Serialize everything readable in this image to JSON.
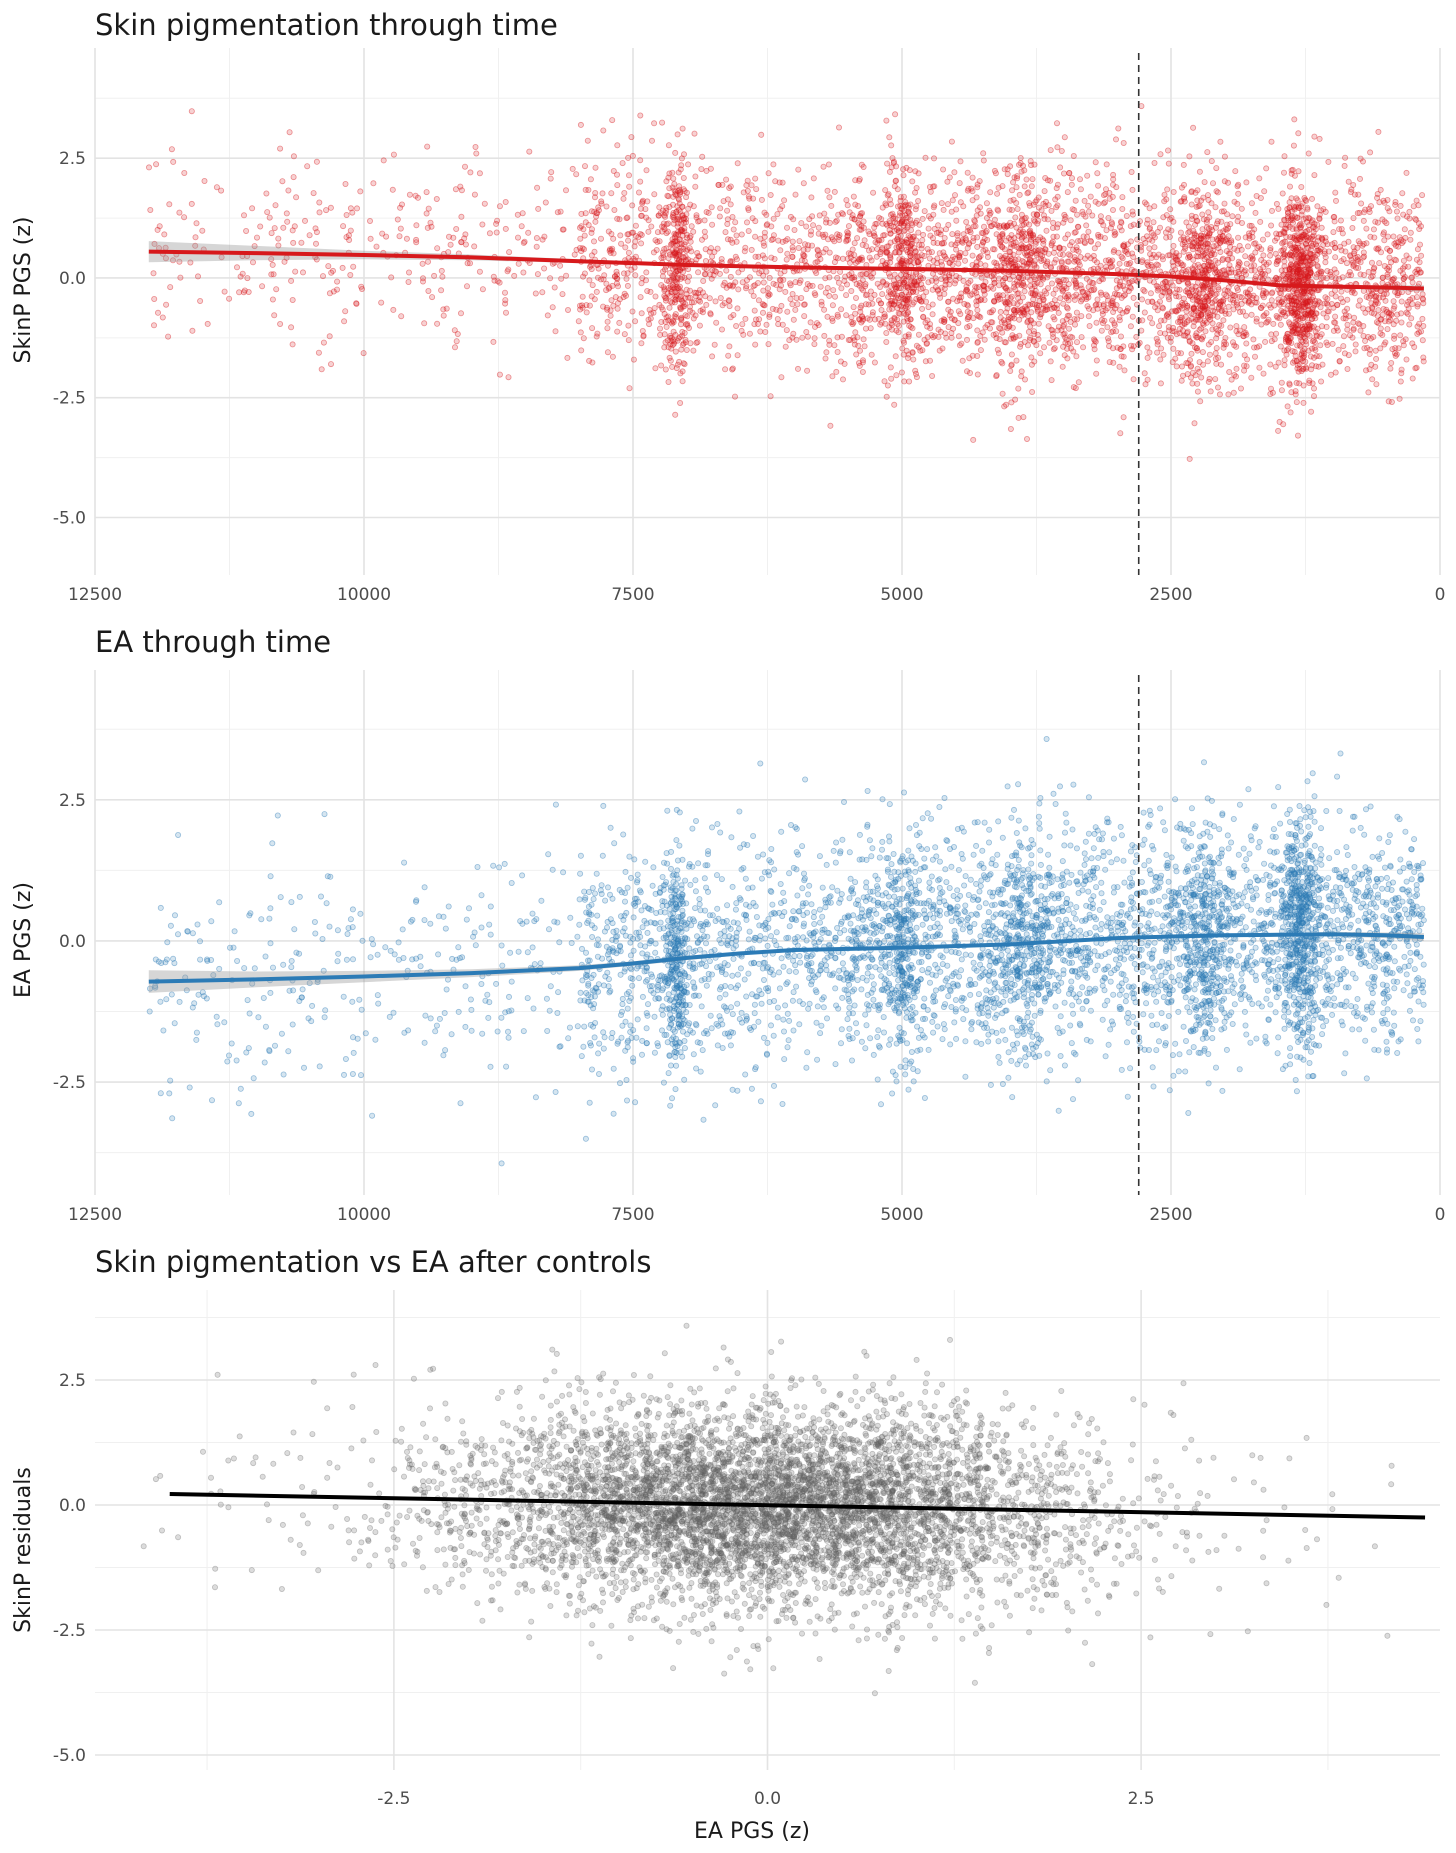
{
  "chart_data": [
    {
      "type": "scatter",
      "title": "Skin pigmentation through time",
      "xlabel": "",
      "ylabel": "SkinP PGS (z)",
      "x_reversed": true,
      "xlim": [
        12500,
        0
      ],
      "ylim": [
        -6.2,
        4.8
      ],
      "x_ticks": [
        12500,
        10000,
        7500,
        5000,
        2500,
        0
      ],
      "y_ticks": [
        2.5,
        0.0,
        -2.5,
        -5.0
      ],
      "x_tick_labels": [
        "12500",
        "10000",
        "7500",
        "5000",
        "2500",
        "0"
      ],
      "y_tick_labels": [
        "2.5",
        "0.0",
        "-2.5",
        "-5.0"
      ],
      "vline_x": 2800,
      "point_color": "#d7191c",
      "line_color": "#d7191c",
      "smooth": {
        "x": [
          12000,
          11000,
          10000,
          9000,
          8000,
          7000,
          6000,
          5000,
          4000,
          3000,
          2500,
          2000,
          1500,
          1000,
          500,
          150
        ],
        "y": [
          0.55,
          0.52,
          0.48,
          0.43,
          0.35,
          0.27,
          0.22,
          0.19,
          0.15,
          0.08,
          0.03,
          -0.05,
          -0.15,
          -0.18,
          -0.2,
          -0.22
        ]
      },
      "ci_halfwidth": [
        0.22,
        0.15,
        0.09,
        0.06,
        0.04,
        0.03,
        0.03,
        0.03,
        0.03,
        0.03,
        0.03,
        0.03,
        0.04,
        0.04,
        0.05,
        0.07
      ],
      "clusters": [
        {
          "center": 7100,
          "spread": 60,
          "share": 0.05
        },
        {
          "center": 1300,
          "spread": 90,
          "share": 0.09
        },
        {
          "center": 2200,
          "spread": 120,
          "share": 0.05
        },
        {
          "center": 5000,
          "spread": 100,
          "share": 0.04
        },
        {
          "center": 3900,
          "spread": 150,
          "share": 0.05
        }
      ]
    },
    {
      "type": "scatter",
      "title": "EA through time",
      "xlabel": "",
      "ylabel": "EA PGS (z)",
      "x_reversed": true,
      "xlim": [
        12500,
        0
      ],
      "ylim": [
        -4.5,
        4.8
      ],
      "x_ticks": [
        12500,
        10000,
        7500,
        5000,
        2500,
        0
      ],
      "y_ticks": [
        2.5,
        0.0,
        -2.5
      ],
      "x_tick_labels": [
        "12500",
        "10000",
        "7500",
        "5000",
        "2500",
        "0"
      ],
      "y_tick_labels": [
        "2.5",
        "0.0",
        "-2.5"
      ],
      "vline_x": 2800,
      "point_color": "#2c7bb6",
      "line_color": "#2c7bb6",
      "smooth": {
        "x": [
          12000,
          11000,
          10000,
          9000,
          8000,
          7500,
          7000,
          6500,
          6000,
          5000,
          4000,
          3000,
          2500,
          2000,
          1500,
          1000,
          500,
          150
        ],
        "y": [
          -0.72,
          -0.68,
          -0.63,
          -0.57,
          -0.48,
          -0.4,
          -0.3,
          -0.22,
          -0.16,
          -0.12,
          -0.06,
          0.05,
          0.08,
          0.1,
          0.11,
          0.12,
          0.1,
          0.07
        ]
      },
      "ci_halfwidth": [
        0.2,
        0.14,
        0.1,
        0.07,
        0.05,
        0.04,
        0.04,
        0.03,
        0.03,
        0.03,
        0.03,
        0.03,
        0.03,
        0.03,
        0.03,
        0.04,
        0.05,
        0.07
      ],
      "clusters": [
        {
          "center": 7100,
          "spread": 60,
          "share": 0.05
        },
        {
          "center": 1300,
          "spread": 90,
          "share": 0.09
        },
        {
          "center": 2200,
          "spread": 120,
          "share": 0.05
        },
        {
          "center": 5000,
          "spread": 100,
          "share": 0.04
        },
        {
          "center": 3900,
          "spread": 150,
          "share": 0.05
        }
      ]
    },
    {
      "type": "scatter",
      "title": "Skin pigmentation vs EA after controls",
      "xlabel": "EA PGS (z)",
      "ylabel": "SkinP residuals",
      "x_reversed": false,
      "xlim": [
        -4.5,
        4.5
      ],
      "ylim": [
        -5.3,
        4.3
      ],
      "x_ticks": [
        -2.5,
        0.0,
        2.5
      ],
      "y_ticks": [
        2.5,
        0.0,
        -2.5,
        -5.0
      ],
      "x_tick_labels": [
        "-2.5",
        "0.0",
        "2.5"
      ],
      "y_tick_labels": [
        "2.5",
        "0.0",
        "-2.5",
        "-5.0"
      ],
      "point_color": "#606060",
      "line_color": "#000000",
      "fit": {
        "x": [
          -4.0,
          4.4
        ],
        "y": [
          0.22,
          -0.25
        ]
      }
    }
  ]
}
